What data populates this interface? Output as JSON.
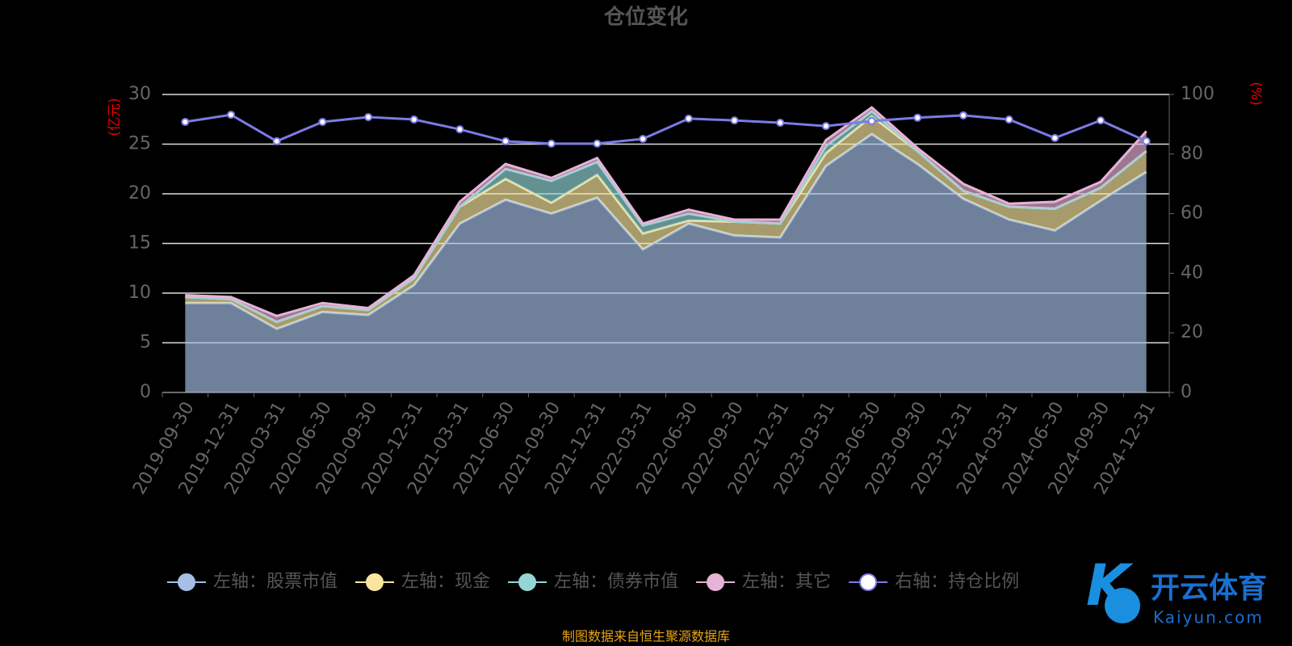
{
  "chart_data": {
    "type": "stacked-area-line",
    "title": "仓位变化",
    "ylabel": "(亿元)",
    "y2label": "(%)",
    "source": "制图数据来自恒生聚源数据库",
    "categories": [
      "2019-09-30",
      "2019-12-31",
      "2020-03-31",
      "2020-06-30",
      "2020-09-30",
      "2020-12-31",
      "2021-03-31",
      "2021-06-30",
      "2021-09-30",
      "2021-12-31",
      "2022-03-31",
      "2022-06-30",
      "2022-09-30",
      "2022-12-31",
      "2023-03-31",
      "2023-06-30",
      "2023-09-30",
      "2023-12-31",
      "2024-03-31",
      "2024-06-30",
      "2024-09-30",
      "2024-12-31"
    ],
    "series": [
      {
        "name": "左轴：股票市值",
        "color": "#a5bfe6",
        "values": [
          9.0,
          9.0,
          6.4,
          8.1,
          7.8,
          10.8,
          17.0,
          19.4,
          18.0,
          19.6,
          14.4,
          17.0,
          15.8,
          15.6,
          22.8,
          26.0,
          23.0,
          19.5,
          17.4,
          16.3,
          19.3,
          22.2
        ]
      },
      {
        "name": "左轴：现金",
        "color": "#f9e5a0",
        "values": [
          0.6,
          0.4,
          0.7,
          0.6,
          0.5,
          0.7,
          1.7,
          2.1,
          1.1,
          2.3,
          1.6,
          0.3,
          1.4,
          1.4,
          1.3,
          1.8,
          1.3,
          0.8,
          1.3,
          2.2,
          1.3,
          2.1
        ]
      },
      {
        "name": "左轴：债券市值",
        "color": "#94d6d6",
        "values": [
          0,
          0,
          0,
          0,
          0,
          0,
          0,
          1.0,
          2.2,
          1.3,
          0.8,
          0.7,
          0,
          0,
          0.7,
          0.5,
          0,
          0,
          0,
          0,
          0,
          0
        ]
      },
      {
        "name": "左轴：其它",
        "color": "#e6b3d6",
        "values": [
          0.2,
          0.2,
          0.6,
          0.3,
          0.2,
          0.3,
          0.5,
          0.5,
          0.3,
          0.4,
          0.2,
          0.4,
          0.2,
          0.4,
          0.6,
          0.4,
          0.3,
          0.7,
          0.3,
          0.7,
          0.6,
          2.0
        ]
      },
      {
        "name": "右轴：持仓比例",
        "color": "#7b7be6",
        "axis": "y2",
        "values": [
          90.8,
          93.2,
          84.3,
          90.8,
          92.4,
          91.6,
          88.3,
          84.3,
          83.5,
          83.5,
          85.1,
          91.9,
          91.3,
          90.5,
          89.4,
          91.1,
          92.2,
          93.0,
          91.6,
          85.4,
          91.3,
          84.3
        ]
      }
    ],
    "ylim": [
      0,
      30
    ],
    "yticks": [
      0,
      5,
      10,
      15,
      20,
      25,
      30
    ],
    "y2lim": [
      0,
      100
    ],
    "y2ticks": [
      0,
      20,
      40,
      60,
      80,
      100
    ],
    "grid": true
  },
  "watermark": {
    "brand": "开云体育",
    "site": "Kaiyun.com"
  }
}
